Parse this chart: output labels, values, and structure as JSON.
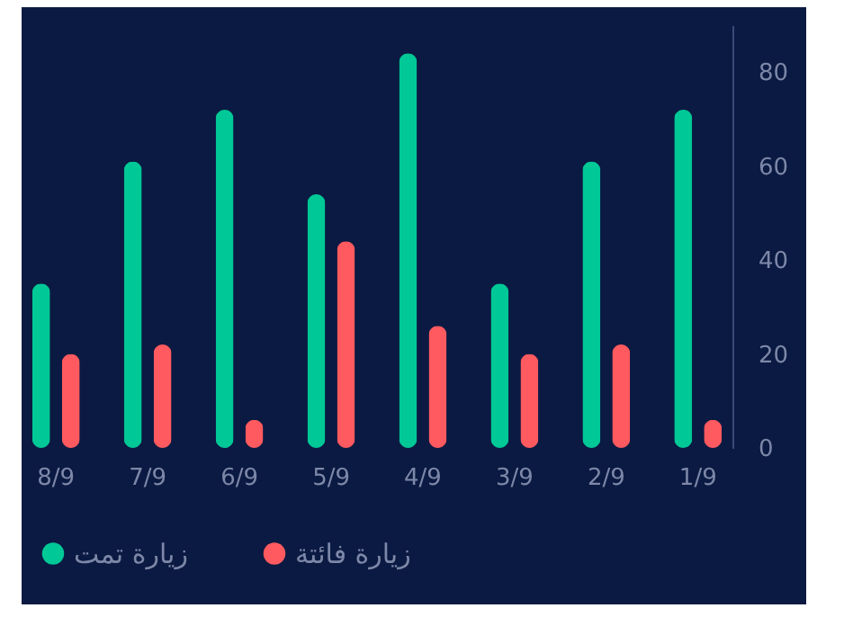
{
  "chart_data": {
    "type": "bar",
    "categories": [
      "8/9",
      "7/9",
      "6/9",
      "5/9",
      "4/9",
      "3/9",
      "2/9",
      "1/9"
    ],
    "series": [
      {
        "name": "زيارة تمت",
        "color": "#00c896",
        "values": [
          35,
          61,
          72,
          54,
          84,
          35,
          61,
          72
        ]
      },
      {
        "name": "زيارة فائتة",
        "color": "#ff5a5f",
        "values": [
          20,
          22,
          6,
          44,
          26,
          20,
          22,
          6
        ]
      }
    ],
    "ylim": [
      0,
      90
    ],
    "yticks": [
      0,
      20,
      40,
      60,
      80
    ],
    "grid": false,
    "legend": "bottom"
  }
}
